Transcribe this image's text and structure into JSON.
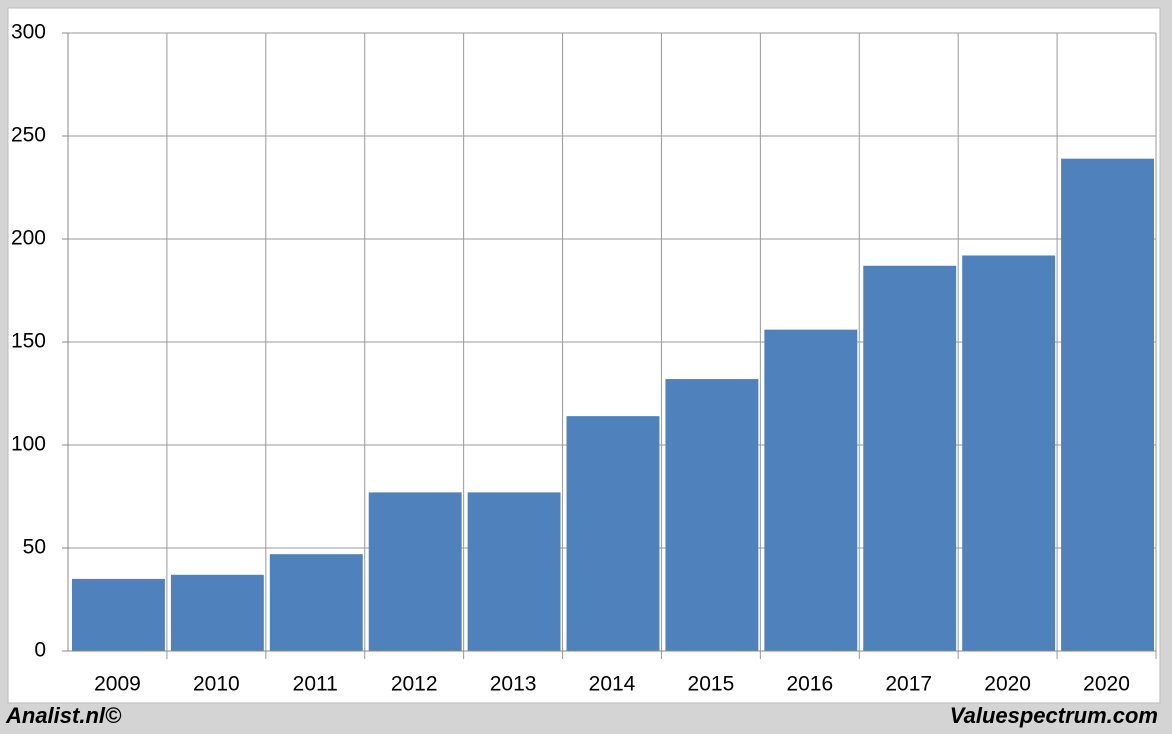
{
  "chart_data": {
    "type": "bar",
    "categories": [
      "2009",
      "2010",
      "2011",
      "2012",
      "2013",
      "2014",
      "2015",
      "2016",
      "2017",
      "2020",
      "2020"
    ],
    "values": [
      35,
      37,
      47,
      77,
      77,
      114,
      132,
      156,
      187,
      192,
      239
    ],
    "color": "#4f81bd",
    "ylim": [
      0,
      300
    ],
    "yticks": [
      0,
      50,
      100,
      150,
      200,
      250,
      300
    ],
    "grid": true
  },
  "footer": {
    "left": "Analist.nl©",
    "right": "Valuespectrum.com"
  }
}
